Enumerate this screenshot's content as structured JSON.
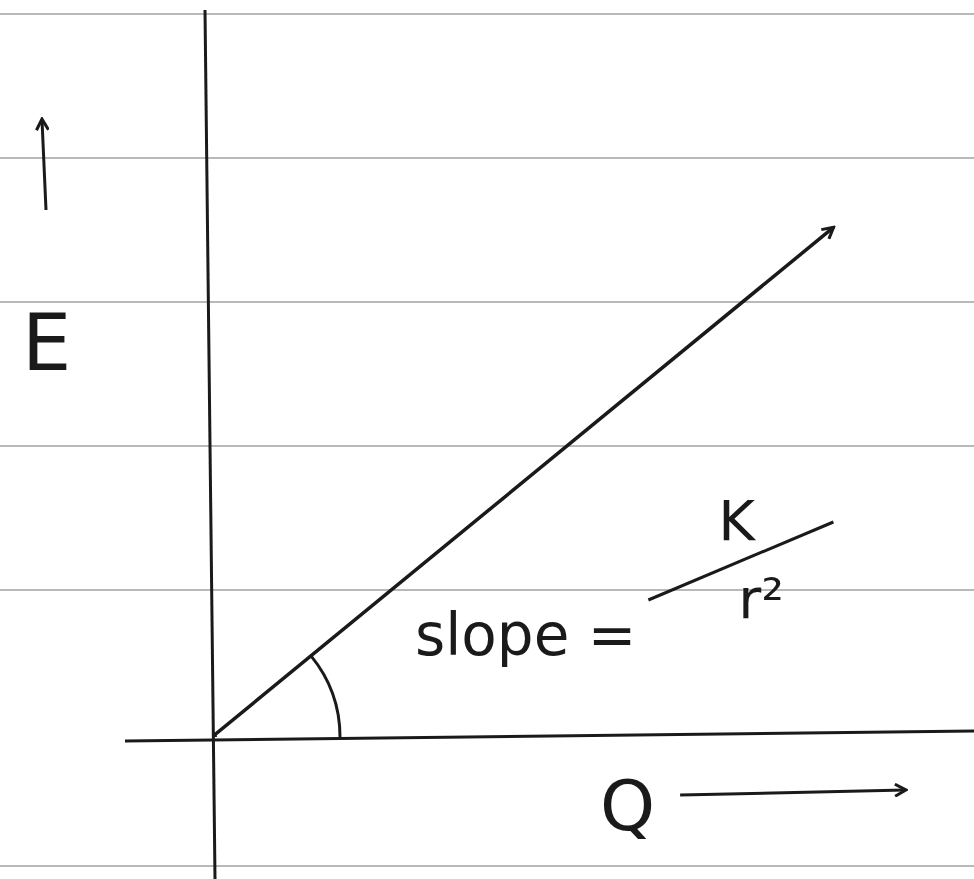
{
  "chart_data": {
    "type": "line",
    "x_label": "Q",
    "y_label": "E",
    "x": [
      0,
      8.3
    ],
    "values": [
      0,
      7.1
    ],
    "xlim": [
      0,
      10
    ],
    "ylim": [
      0,
      10
    ],
    "xticks": [],
    "yticks": [],
    "tick_labels": false,
    "grid": false,
    "color": "#1a1a1a",
    "annotation": {
      "text": "slope =",
      "numerator": "K",
      "denominator": "r²"
    }
  }
}
